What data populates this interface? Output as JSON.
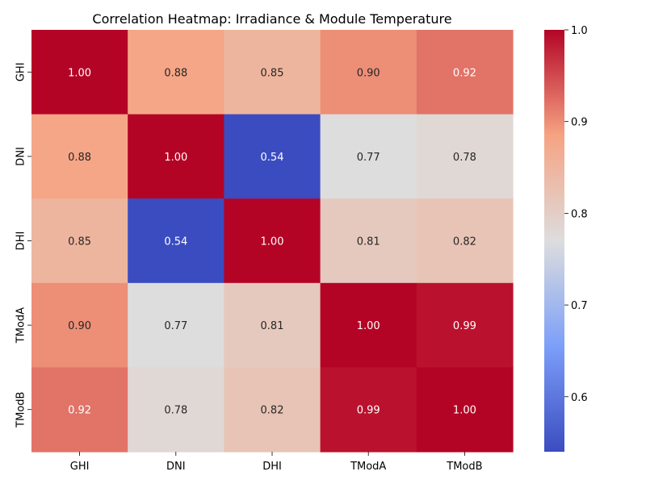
{
  "chart_data": {
    "type": "heatmap",
    "title": "Correlation Heatmap: Irradiance & Module Temperature",
    "xlabel": "",
    "ylabel": "",
    "x_categories": [
      "GHI",
      "DNI",
      "DHI",
      "TModA",
      "TModB"
    ],
    "y_categories": [
      "GHI",
      "DNI",
      "DHI",
      "TModA",
      "TModB"
    ],
    "values": [
      [
        1.0,
        0.88,
        0.85,
        0.9,
        0.92
      ],
      [
        0.88,
        1.0,
        0.54,
        0.77,
        0.78
      ],
      [
        0.85,
        0.54,
        1.0,
        0.81,
        0.82
      ],
      [
        0.9,
        0.77,
        0.81,
        1.0,
        0.99
      ],
      [
        0.92,
        0.78,
        0.82,
        0.99,
        1.0
      ]
    ],
    "annotation_format": "2 decimals",
    "colormap": "coolwarm",
    "colorbar": {
      "range": [
        0.54,
        1.0
      ],
      "ticks": [
        0.6,
        0.7,
        0.8,
        0.9,
        1.0
      ],
      "tick_labels": [
        "0.6",
        "0.7",
        "0.8",
        "0.9",
        "1.0"
      ]
    },
    "grid": false
  }
}
